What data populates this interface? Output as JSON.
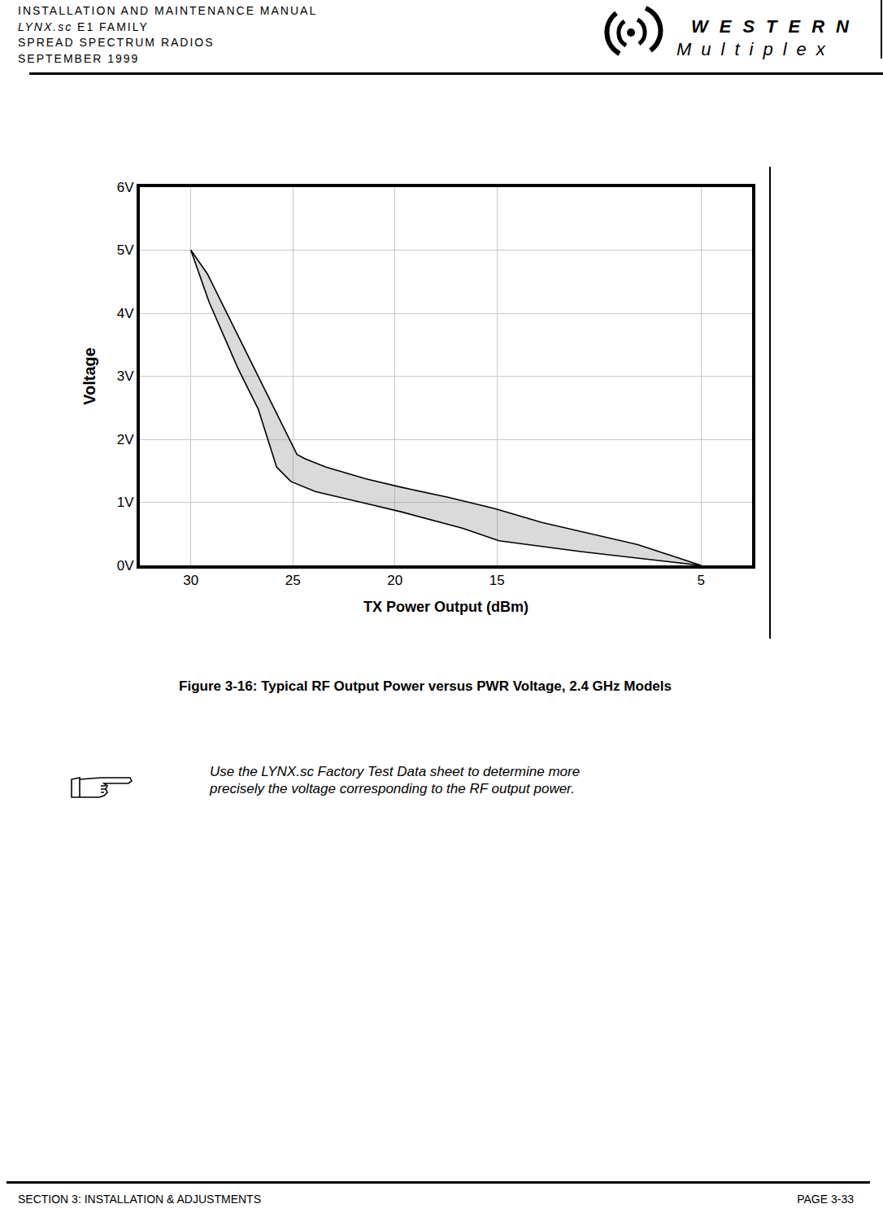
{
  "header": {
    "lines": [
      "INSTALLATION AND MAINTENANCE MANUAL",
      {
        "italic": "LYNX.sc",
        "rest": "E1 FAMILY"
      },
      "SPREAD SPECTRUM RADIOS",
      "SEPTEMBER 1999"
    ],
    "logo": {
      "top": "WESTERN",
      "bottom": "Multiplex"
    }
  },
  "chart_data": {
    "type": "line",
    "x_label": "TX Power Output (dBm)",
    "y_label": "Voltage",
    "color": "#000000",
    "grid": true,
    "xlim": [
      32.5,
      2.5
    ],
    "xticks": [
      30,
      25,
      20,
      15,
      5
    ],
    "ylim": [
      0,
      6
    ],
    "yticks": [
      {
        "value": 0,
        "label": "0V"
      },
      {
        "value": 1,
        "label": "1V"
      },
      {
        "value": 2,
        "label": "2V"
      },
      {
        "value": 3,
        "label": "3V"
      },
      {
        "value": 4,
        "label": "4V"
      },
      {
        "value": 5,
        "label": "5V"
      },
      {
        "value": 6,
        "label": "6V"
      }
    ],
    "series": [
      {
        "x": [
          30,
          29.2,
          28.1,
          27.1,
          26.1,
          25.3,
          24.8,
          24.4,
          23.4,
          21.4,
          19.7,
          17.4,
          15.1,
          12.8,
          8.1,
          5
        ],
        "values": [
          5,
          4.63,
          3.91,
          3.26,
          2.61,
          2.09,
          1.76,
          1.69,
          1.56,
          1.37,
          1.24,
          1.08,
          0.9,
          0.68,
          0.33,
          0
        ]
      },
      {
        "x": [
          30,
          29.1,
          28.4,
          27.7,
          26.7,
          25.8,
          25.1,
          23.9,
          21.4,
          19.7,
          16.7,
          14.9,
          10.9,
          5
        ],
        "values": [
          5,
          4.17,
          3.65,
          3.13,
          2.48,
          1.56,
          1.33,
          1.17,
          0.98,
          0.85,
          0.59,
          0.39,
          0.22,
          0
        ]
      }
    ]
  },
  "caption": "Figure 3-16: Typical RF Output Power versus PWR Voltage, 2.4 GHz Models",
  "note": [
    "Use the LYNX.sc Factory Test Data sheet to determine more",
    "precisely the voltage corresponding to the RF output power."
  ],
  "footer": {
    "left": "SECTION 3: INSTALLATION & ADJUSTMENTS",
    "right": "PAGE 3-33"
  }
}
